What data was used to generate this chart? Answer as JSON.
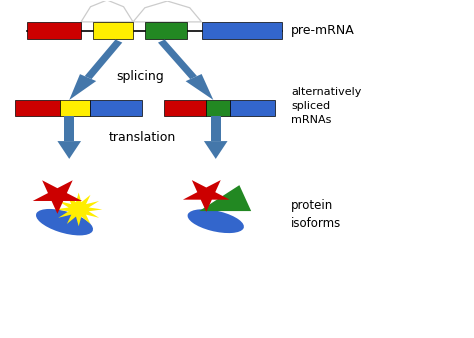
{
  "bg_color": "#ffffff",
  "red": "#cc0000",
  "yellow": "#ffee00",
  "green": "#228822",
  "blue": "#3366cc",
  "arrow_color": "#4477aa",
  "text_color": "#000000",
  "label_premrna": "pre-mRNA",
  "label_splicing": "splicing",
  "label_alt": "alternatively\nspliced\nmRNAs",
  "label_translation": "translation",
  "label_protein": "protein\nisoforms",
  "figw": 4.74,
  "figh": 3.38,
  "dpi": 100
}
